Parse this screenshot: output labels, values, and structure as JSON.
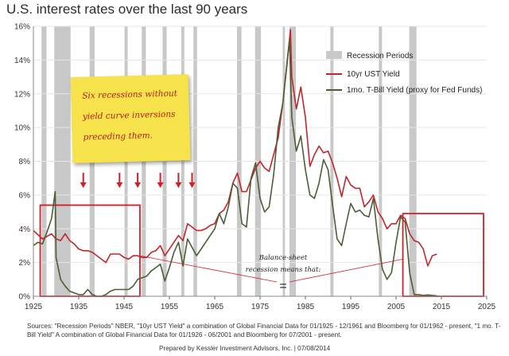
{
  "chart_data": {
    "type": "line",
    "title": "U.S. interest rates over the last 90 years",
    "x_ticks": [
      "1925",
      "1935",
      "1945",
      "1955",
      "1965",
      "1975",
      "1985",
      "1995",
      "2005",
      "2015",
      "2025"
    ],
    "y_ticks": [
      "0%",
      "2%",
      "4%",
      "6%",
      "8%",
      "10%",
      "12%",
      "14%",
      "16%"
    ],
    "xlim": [
      1925,
      2025
    ],
    "ylim": [
      0,
      16
    ],
    "legend": {
      "placement": "top-right",
      "recession_label": "Recession Periods"
    },
    "recession_color": "#c8c8c8",
    "recessions": [
      [
        1926.8,
        1927.9
      ],
      [
        1929.6,
        1933.2
      ],
      [
        1937.4,
        1938.5
      ],
      [
        1945.1,
        1945.8
      ],
      [
        1948.9,
        1949.8
      ],
      [
        1953.5,
        1954.4
      ],
      [
        1957.6,
        1958.3
      ],
      [
        1960.3,
        1961.1
      ],
      [
        1969.9,
        1970.9
      ],
      [
        1973.9,
        1975.2
      ],
      [
        1980.0,
        1980.5
      ],
      [
        1981.5,
        1982.9
      ],
      [
        1990.5,
        1991.2
      ],
      [
        2001.2,
        2001.9
      ],
      [
        2007.9,
        2009.5
      ]
    ],
    "series": [
      {
        "name": "10yr UST Yield",
        "color": "#c0262c",
        "x": [
          1925,
          1927,
          1929,
          1930,
          1931,
          1932,
          1933,
          1934,
          1935,
          1936,
          1937,
          1938,
          1939,
          1940,
          1941,
          1942,
          1943,
          1944,
          1945,
          1946,
          1947,
          1948,
          1949,
          1950,
          1951,
          1952,
          1953,
          1954,
          1955,
          1956,
          1957,
          1958,
          1959,
          1960,
          1961,
          1962,
          1963,
          1964,
          1965,
          1966,
          1967,
          1968,
          1969,
          1970,
          1971,
          1972,
          1973,
          1974,
          1975,
          1976,
          1977,
          1978,
          1979,
          1980,
          1981,
          1981.7,
          1982,
          1983,
          1984,
          1985,
          1986,
          1987,
          1988,
          1989,
          1990,
          1991,
          1992,
          1993,
          1994,
          1995,
          1996,
          1997,
          1998,
          1999,
          2000,
          2001,
          2002,
          2003,
          2004,
          2005,
          2006,
          2007,
          2008,
          2009,
          2010,
          2011,
          2012,
          2013,
          2014
        ],
        "y": [
          3.9,
          3.4,
          3.7,
          3.4,
          3.3,
          3.7,
          3.3,
          3.1,
          2.8,
          2.7,
          2.7,
          2.6,
          2.4,
          2.2,
          2.0,
          2.5,
          2.5,
          2.5,
          2.3,
          2.2,
          2.4,
          2.4,
          2.3,
          2.3,
          2.6,
          2.7,
          3.0,
          2.4,
          2.8,
          3.2,
          3.6,
          3.3,
          4.3,
          4.1,
          3.9,
          3.9,
          4.0,
          4.2,
          4.3,
          4.9,
          5.1,
          5.6,
          6.7,
          7.3,
          6.2,
          6.2,
          6.9,
          7.6,
          8.0,
          7.6,
          7.4,
          8.4,
          9.4,
          11.4,
          13.9,
          15.8,
          13.0,
          11.1,
          12.4,
          10.6,
          7.7,
          8.4,
          8.9,
          8.5,
          8.6,
          7.9,
          7.0,
          5.9,
          7.1,
          6.6,
          6.4,
          6.4,
          5.3,
          5.6,
          6.0,
          5.0,
          4.6,
          4.0,
          4.3,
          4.3,
          4.8,
          4.6,
          3.7,
          3.3,
          3.2,
          2.8,
          1.8,
          2.4,
          2.5
        ]
      },
      {
        "name": "1mo. T-Bill Yield (proxy for Fed Funds)",
        "color": "#4b5e34",
        "x": [
          1925,
          1926,
          1927,
          1928,
          1929,
          1929.8,
          1930,
          1931,
          1932,
          1933,
          1934,
          1935,
          1936,
          1937,
          1938,
          1939,
          1940,
          1941,
          1942,
          1943,
          1944,
          1945,
          1946,
          1947,
          1948,
          1949,
          1950,
          1951,
          1952,
          1953,
          1954,
          1955,
          1956,
          1957,
          1958,
          1959,
          1960,
          1961,
          1962,
          1963,
          1964,
          1965,
          1966,
          1967,
          1968,
          1969,
          1970,
          1971,
          1972,
          1973,
          1974,
          1975,
          1976,
          1977,
          1978,
          1979,
          1980,
          1981,
          1981.5,
          1982,
          1983,
          1984,
          1985,
          1986,
          1987,
          1988,
          1989,
          1990,
          1991,
          1992,
          1993,
          1994,
          1995,
          1996,
          1997,
          1998,
          1999,
          2000,
          2001,
          2002,
          2003,
          2004,
          2005,
          2006,
          2007,
          2008,
          2009,
          2010,
          2011,
          2012,
          2013,
          2014
        ],
        "y": [
          3.0,
          3.2,
          3.1,
          3.8,
          4.6,
          6.2,
          2.3,
          1.0,
          0.6,
          0.3,
          0.2,
          0.1,
          0.1,
          0.4,
          0.1,
          0.0,
          0.0,
          0.1,
          0.3,
          0.4,
          0.4,
          0.4,
          0.4,
          0.6,
          1.0,
          1.1,
          1.2,
          1.5,
          1.7,
          1.9,
          0.9,
          1.7,
          2.6,
          3.2,
          1.8,
          3.4,
          2.9,
          2.4,
          2.8,
          3.2,
          3.6,
          4.0,
          4.9,
          4.3,
          5.3,
          6.7,
          6.4,
          4.3,
          4.1,
          7.0,
          7.9,
          5.8,
          5.0,
          5.3,
          7.2,
          10.0,
          11.4,
          14.0,
          15.2,
          10.6,
          8.6,
          9.5,
          7.5,
          6.0,
          5.8,
          6.7,
          8.1,
          7.5,
          5.4,
          3.4,
          3.0,
          4.3,
          5.5,
          5.0,
          5.1,
          4.8,
          4.7,
          5.8,
          3.4,
          1.6,
          1.0,
          1.4,
          3.2,
          4.7,
          4.4,
          1.4,
          0.1,
          0.1,
          0.05,
          0.08,
          0.05,
          0.03
        ]
      }
    ],
    "annotation_boxes": [
      {
        "x0": 1926.5,
        "x1": 1948.5,
        "y0": 0.0,
        "y1": 5.4
      },
      {
        "x0": 2006.5,
        "x1": 2024.3,
        "y0": 0.0,
        "y1": 4.9
      }
    ],
    "arrows_at": [
      1936,
      1944,
      1948,
      1953,
      1957,
      1960
    ],
    "balance_sheet_text": [
      "Balance-sheet",
      "recession means that:"
    ],
    "equals_sign": "="
  },
  "note": {
    "lines": [
      "Six recessions without",
      "yield curve inversions",
      "preceding them."
    ]
  },
  "footer": {
    "sources": "Sources: \"Recession Periods\" NBER, \"10yr UST Yield\" a combination of Global Financial Data for 01/1925 - 12/1961 and Bloomberg for 01/1962 - present, \"1 mo. T-Bill Yield\" A combination of Global Financial Data for 01/1926 - 06/2001 and Bloomberg for 07/2001 - present.",
    "prepared": "Prepared by Kessler Investment Advisors, Inc. | 07/08/2014"
  }
}
